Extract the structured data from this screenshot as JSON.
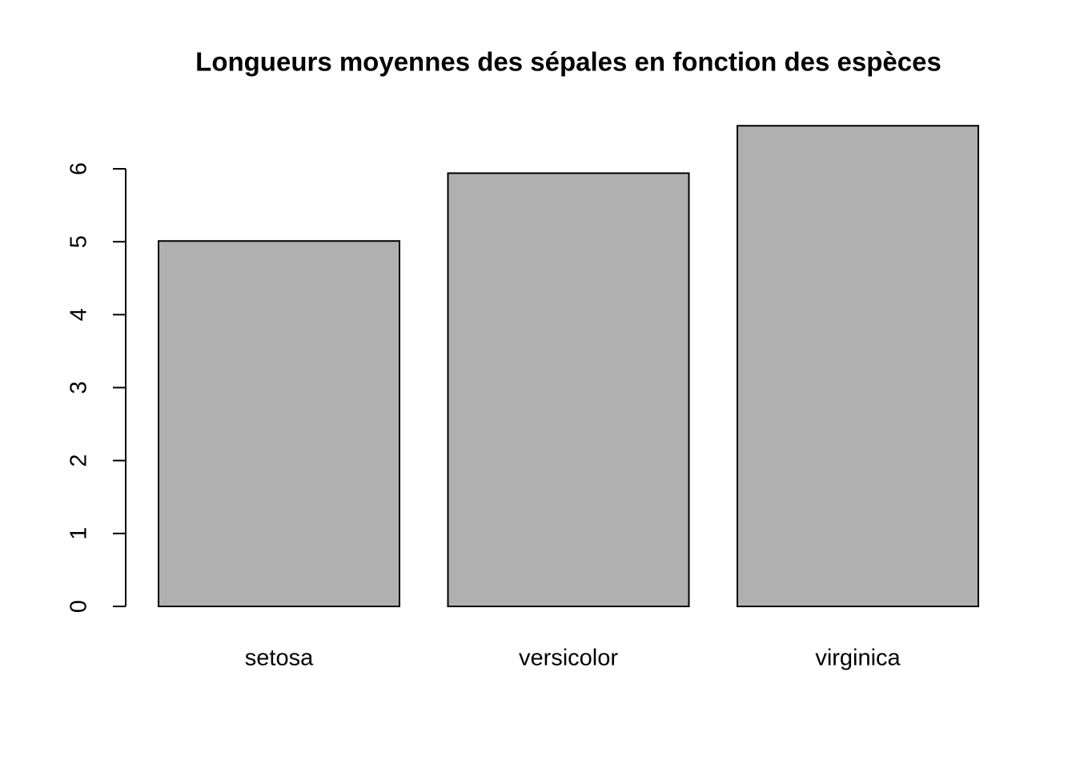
{
  "chart_data": {
    "type": "bar",
    "title": "Longueurs moyennes des sépales en fonction des espèces",
    "categories": [
      "setosa",
      "versicolor",
      "virginica"
    ],
    "values": [
      5.01,
      5.94,
      6.59
    ],
    "color": "#b0b0b0",
    "ylim": [
      0,
      6.85
    ],
    "yticks": [
      0,
      1,
      2,
      3,
      4,
      5,
      6
    ]
  }
}
